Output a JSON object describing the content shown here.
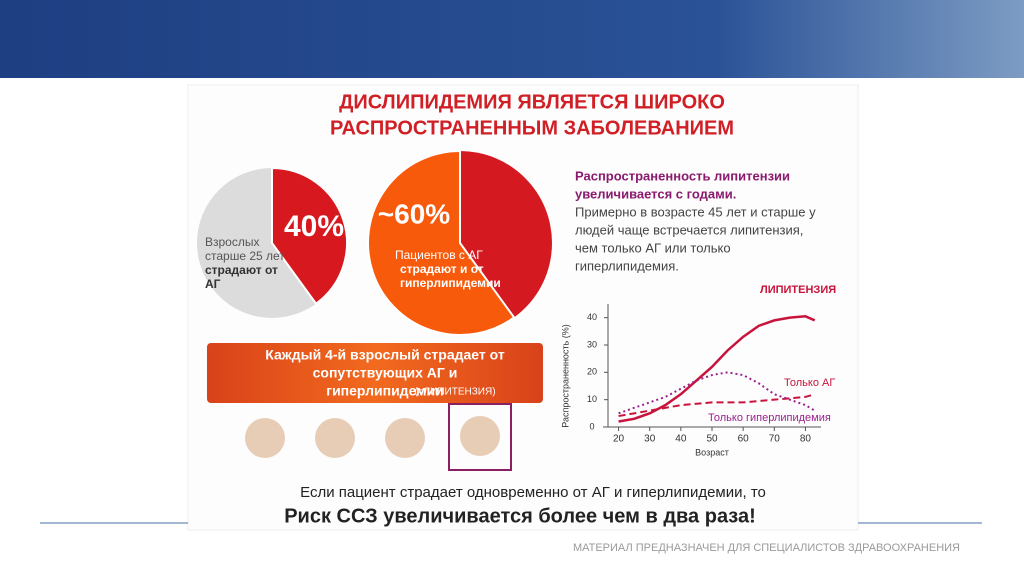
{
  "header": {
    "title": [
      "ДИСЛИПИДЕМИЯ  ЯВЛЯЕТСЯ ШИРОКО",
      "РАСПРОСТРАНЕННЫМ ЗАБОЛЕВАНИЕМ"
    ]
  },
  "chart_data": [
    {
      "type": "pie",
      "values": [
        40
      ],
      "value_labels": [
        "40%"
      ],
      "colors": [
        "#d7191f",
        "#dcdcdc"
      ],
      "direction": "clockwise",
      "caption": [
        "Взрослых",
        "старше 25 лет"
      ],
      "caption_bold": [
        "страдают от",
        "АГ"
      ]
    },
    {
      "type": "pie",
      "values": [
        60
      ],
      "value_labels": [
        "~60%"
      ],
      "colors": [
        "#f75a0a",
        "#d51921"
      ],
      "direction": "counterclockwise",
      "caption": [
        "Пациентов с АГ"
      ],
      "caption_bold": [
        "страдают и от",
        "гиперлипидемии"
      ]
    },
    {
      "type": "line",
      "xlabel": "Возраст",
      "ylabel": "Распространенность (%)",
      "x": [
        20,
        25,
        30,
        35,
        40,
        45,
        50,
        55,
        60,
        65,
        70,
        75,
        80,
        83
      ],
      "xlim": [
        15,
        85
      ],
      "xticks": [
        20,
        30,
        40,
        50,
        60,
        70,
        80
      ],
      "ylim": [
        0,
        45
      ],
      "yticks": [
        0,
        10,
        20,
        30,
        40
      ],
      "series": [
        {
          "name": "ЛИПИТЕНЗИЯ",
          "color": "#c8143c",
          "style": "solid",
          "values": [
            2,
            3,
            5,
            8,
            12,
            17,
            22,
            28,
            33,
            37,
            39,
            40,
            40.5,
            39
          ]
        },
        {
          "name": "Только АГ",
          "color": "#c8143c",
          "style": "dashed",
          "values": [
            4,
            5,
            6,
            7,
            8,
            8.5,
            9,
            9,
            9,
            9.5,
            10,
            10.5,
            11,
            12
          ]
        },
        {
          "name": "Только гиперлипидемия",
          "color": "#9b1f8f",
          "style": "dotted",
          "values": [
            5,
            7,
            9,
            11,
            14,
            17,
            19,
            20,
            19,
            16,
            12,
            10,
            8,
            6
          ]
        }
      ]
    }
  ],
  "info": {
    "bold": [
      "Распространенность липитензии",
      "увеличивается с годами."
    ],
    "text": [
      "Примерно в возрасте 45 лет и старше у",
      "людей чаще встречается липитензия,",
      "чем только АГ или только",
      "гиперлипидемия."
    ]
  },
  "banner": {
    "lines": [
      "Каждый 4-й взрослый страдает от",
      "сопутствующих АГ и",
      "гиперлипидемии"
    ],
    "note": "(=ЛИПИТЕНЗИЯ)"
  },
  "bottom": {
    "line1": "Если пациент страдает одновременно от АГ и гиперлипидемии, то",
    "line2": "Риск ССЗ увеличивается более чем в два раза!"
  },
  "footer": "МАТЕРИАЛ ПРЕДНАЗНАЧЕН ДЛЯ СПЕЦИАЛИСТОВ ЗДРАВООХРАНЕНИЯ"
}
